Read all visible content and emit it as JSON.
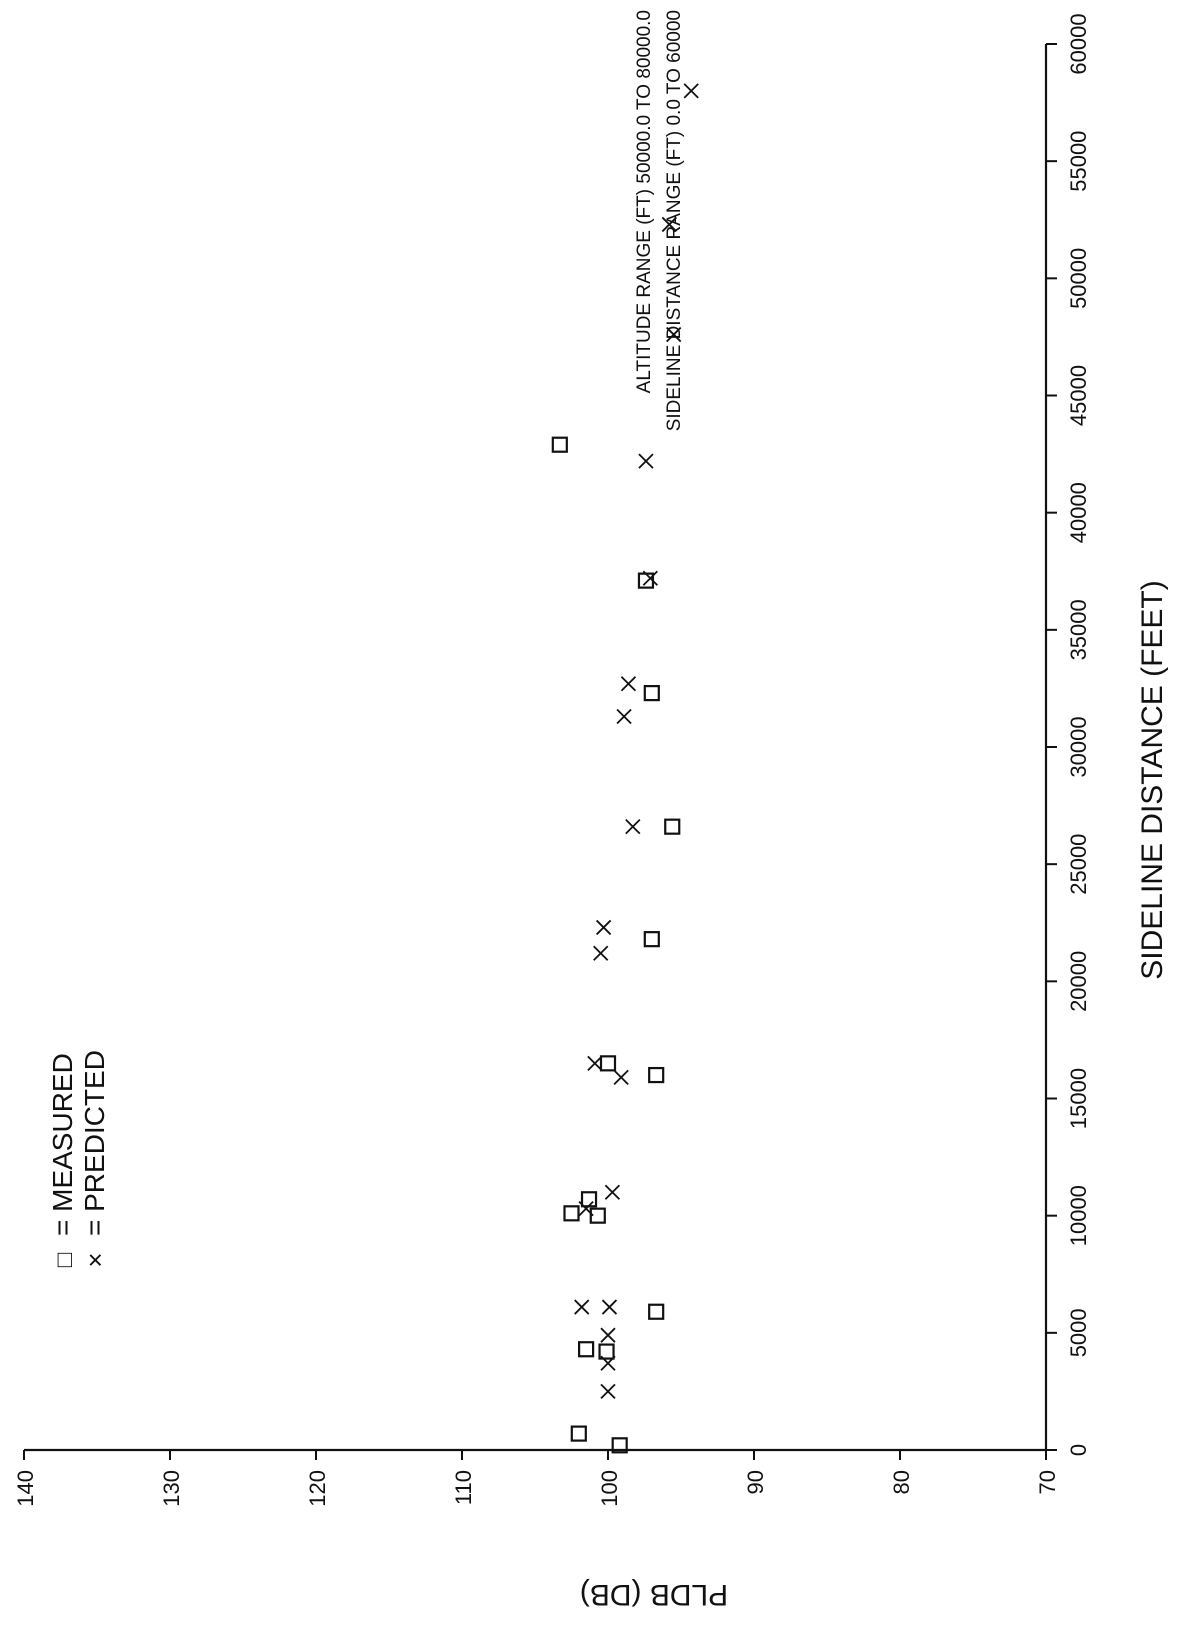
{
  "chart_data": {
    "type": "scatter",
    "title": "",
    "xlabel": "SIDELINE DISTANCE (FEET)",
    "ylabel": "PLDB (DB)",
    "xlim": [
      0,
      60000
    ],
    "ylim": [
      70,
      140
    ],
    "x_ticks": [
      0,
      5000,
      10000,
      15000,
      20000,
      25000,
      30000,
      35000,
      40000,
      45000,
      50000,
      55000,
      60000
    ],
    "y_ticks": [
      70,
      80,
      90,
      100,
      110,
      120,
      130,
      140
    ],
    "grid": false,
    "orientation": "rotated-90",
    "annotations": [
      "ALTITUDE RANGE (FT)  50000.0  TO  80000.0",
      "SIDELINE DISTANCE RANGE (FT)  0.0  TO  60000"
    ],
    "legend": {
      "placement": "top-left",
      "entries": [
        {
          "symbol": "□",
          "label": "= MEASURED"
        },
        {
          "symbol": "×",
          "label": "= PREDICTED"
        }
      ]
    },
    "series": [
      {
        "name": "MEASURED",
        "marker": "square",
        "points": [
          [
            700,
            102.0
          ],
          [
            200,
            99.2
          ],
          [
            4300,
            101.5
          ],
          [
            4200,
            100.1
          ],
          [
            5900,
            96.7
          ],
          [
            10100,
            102.5
          ],
          [
            10700,
            101.3
          ],
          [
            10000,
            100.7
          ],
          [
            16500,
            100.0
          ],
          [
            16000,
            96.7
          ],
          [
            21800,
            97.0
          ],
          [
            26600,
            95.6
          ],
          [
            32300,
            97.0
          ],
          [
            37100,
            97.4
          ],
          [
            42900,
            103.3
          ]
        ]
      },
      {
        "name": "PREDICTED",
        "marker": "x",
        "points": [
          [
            2500,
            100.0
          ],
          [
            3700,
            100.0
          ],
          [
            4900,
            100.0
          ],
          [
            6100,
            101.8
          ],
          [
            6100,
            99.9
          ],
          [
            10300,
            101.5
          ],
          [
            11000,
            99.7
          ],
          [
            16500,
            100.9
          ],
          [
            15900,
            99.1
          ],
          [
            21200,
            100.5
          ],
          [
            22300,
            100.3
          ],
          [
            26600,
            98.3
          ],
          [
            31300,
            98.9
          ],
          [
            32700,
            98.6
          ],
          [
            37200,
            97.1
          ],
          [
            42200,
            97.4
          ],
          [
            47600,
            95.5
          ],
          [
            52300,
            95.8
          ],
          [
            58000,
            94.3
          ]
        ]
      }
    ]
  }
}
